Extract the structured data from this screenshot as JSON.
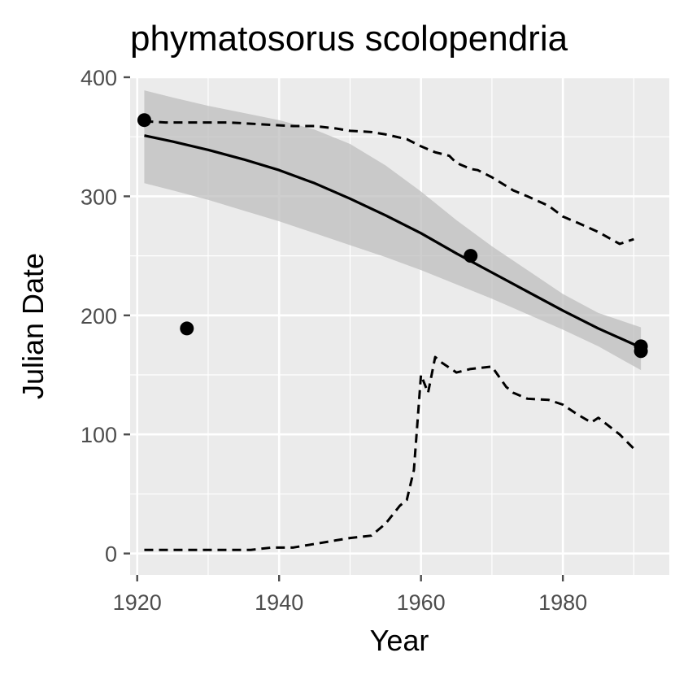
{
  "chart_data": {
    "type": "line",
    "title": "phymatosorus scolopendria",
    "xlabel": "Year",
    "ylabel": "Julian Date",
    "xlim": [
      1919,
      1995
    ],
    "ylim": [
      -18,
      400
    ],
    "x_ticks": [
      1920,
      1940,
      1960,
      1980
    ],
    "y_ticks": [
      0,
      100,
      200,
      300,
      400
    ],
    "grid": true,
    "colors": {
      "panel": "#ebebeb",
      "grid": "#ffffff",
      "points": "#000000",
      "fit": "#000000",
      "ribbon": "#bebebe",
      "ticks": "#4d4d4d"
    },
    "points": [
      {
        "x": 1921,
        "y": 364
      },
      {
        "x": 1927,
        "y": 189
      },
      {
        "x": 1967,
        "y": 250
      },
      {
        "x": 1991,
        "y": 174
      },
      {
        "x": 1991,
        "y": 170
      }
    ],
    "series": [
      {
        "style": "solid",
        "x": [
          1921,
          1925,
          1930,
          1935,
          1940,
          1945,
          1950,
          1955,
          1960,
          1965,
          1970,
          1975,
          1980,
          1985,
          1991
        ],
        "values": [
          351,
          346,
          339,
          331,
          322,
          311,
          298,
          284,
          269,
          252,
          236,
          220,
          204,
          189,
          173
        ],
        "band_lower": [
          311,
          305,
          297,
          288,
          279,
          269,
          259,
          249,
          238,
          226,
          214,
          201,
          188,
          174,
          154
        ],
        "band_upper": [
          389,
          383,
          376,
          370,
          364,
          356,
          344,
          326,
          304,
          280,
          258,
          238,
          218,
          202,
          190
        ]
      },
      {
        "style": "dashed",
        "x": [
          1921,
          1924,
          1927,
          1930,
          1933,
          1936,
          1939,
          1942,
          1945,
          1948,
          1950,
          1953,
          1955,
          1958,
          1960,
          1962,
          1964,
          1965,
          1967,
          1968,
          1970,
          1973,
          1975,
          1978,
          1980,
          1982,
          1985,
          1988,
          1990
        ],
        "values": [
          363,
          362,
          362,
          362,
          362,
          361,
          360,
          359,
          359,
          357,
          355,
          354,
          352,
          348,
          342,
          337,
          334,
          328,
          323,
          322,
          316,
          305,
          300,
          292,
          283,
          278,
          270,
          260,
          264
        ]
      },
      {
        "style": "dashed",
        "x": [
          1921,
          1924,
          1927,
          1930,
          1933,
          1936,
          1939,
          1942,
          1945,
          1948,
          1950,
          1953,
          1955,
          1957,
          1958,
          1959,
          1960,
          1961,
          1962,
          1963,
          1965,
          1967,
          1970,
          1972,
          1973,
          1975,
          1978,
          1980,
          1982,
          1984,
          1985,
          1988,
          1990
        ],
        "values": [
          3,
          3,
          3,
          3,
          3,
          3,
          5,
          5,
          8,
          11,
          13,
          15,
          25,
          40,
          45,
          70,
          150,
          135,
          165,
          160,
          152,
          155,
          157,
          140,
          135,
          130,
          129,
          125,
          117,
          110,
          114,
          100,
          88
        ]
      }
    ]
  }
}
